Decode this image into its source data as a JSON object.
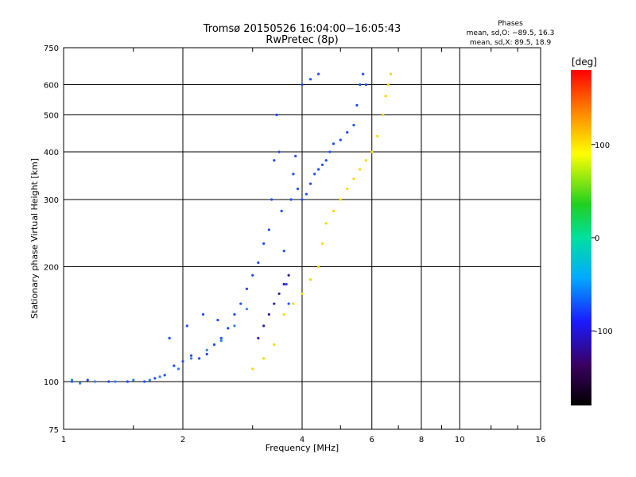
{
  "chart_data": {
    "type": "scatter",
    "title": "Tromsø 20150526 16:04:00−16:05:43",
    "subtitle": "RwPretec (8p)",
    "xlabel": "Frequency [MHz]",
    "ylabel": "Stationary phase Virtual Height [km]",
    "x_scale": "log",
    "y_scale": "log",
    "xlim": [
      1,
      16
    ],
    "ylim": [
      75,
      750
    ],
    "x_ticks": [
      1,
      2,
      4,
      6,
      8,
      10,
      16
    ],
    "y_ticks": [
      75,
      100,
      200,
      300,
      400,
      500,
      600,
      750
    ],
    "grid": true,
    "phase_info": {
      "heading": "Phases",
      "line_o": "mean, sd,O: −89.5, 16.3",
      "line_x": "mean, sd,X:  89.5, 18.9"
    },
    "colorbar": {
      "label": "[deg]",
      "range": [
        -180,
        180
      ],
      "ticks": [
        100,
        0,
        -100
      ],
      "colormap": "rainbow"
    },
    "series": [
      {
        "color": "#1a4bff",
        "value_deg": -90,
        "points": [
          [
            1.05,
            100
          ],
          [
            1.15,
            101
          ],
          [
            1.3,
            100
          ],
          [
            1.45,
            100
          ],
          [
            1.6,
            100
          ],
          [
            1.7,
            102
          ],
          [
            1.8,
            104
          ],
          [
            1.9,
            110
          ],
          [
            2.0,
            113
          ],
          [
            2.1,
            117
          ],
          [
            2.2,
            115
          ],
          [
            2.3,
            118
          ],
          [
            2.4,
            125
          ],
          [
            2.5,
            130
          ],
          [
            2.6,
            138
          ],
          [
            2.7,
            150
          ],
          [
            2.8,
            160
          ],
          [
            2.9,
            175
          ],
          [
            3.0,
            190
          ],
          [
            3.1,
            205
          ],
          [
            3.2,
            230
          ],
          [
            3.3,
            250
          ],
          [
            3.35,
            300
          ],
          [
            3.4,
            380
          ],
          [
            3.45,
            500
          ],
          [
            3.5,
            400
          ],
          [
            3.55,
            280
          ],
          [
            3.6,
            220
          ],
          [
            3.65,
            180
          ],
          [
            3.7,
            160
          ],
          [
            3.75,
            300
          ],
          [
            3.8,
            350
          ],
          [
            3.85,
            390
          ],
          [
            3.9,
            320
          ],
          [
            4.0,
            300
          ],
          [
            4.1,
            310
          ],
          [
            4.2,
            330
          ],
          [
            4.3,
            350
          ],
          [
            4.4,
            360
          ],
          [
            4.5,
            370
          ],
          [
            4.6,
            380
          ],
          [
            4.7,
            400
          ],
          [
            4.8,
            420
          ],
          [
            5.0,
            430
          ],
          [
            5.2,
            450
          ],
          [
            5.4,
            470
          ],
          [
            5.5,
            530
          ],
          [
            5.6,
            600
          ],
          [
            5.7,
            640
          ],
          [
            5.8,
            600
          ],
          [
            4.2,
            620
          ],
          [
            4.4,
            640
          ],
          [
            4.0,
            600
          ],
          [
            1.85,
            130
          ],
          [
            2.05,
            140
          ],
          [
            2.25,
            150
          ],
          [
            2.45,
            145
          ]
        ]
      },
      {
        "color": "#2a80ff",
        "value_deg": -70,
        "points": [
          [
            1.05,
            101
          ],
          [
            1.1,
            99
          ],
          [
            1.2,
            100
          ],
          [
            1.35,
            100
          ],
          [
            1.5,
            101
          ],
          [
            1.65,
            101
          ],
          [
            1.75,
            103
          ],
          [
            1.95,
            108
          ],
          [
            2.1,
            115
          ],
          [
            2.3,
            121
          ],
          [
            2.5,
            128
          ],
          [
            2.7,
            140
          ],
          [
            2.9,
            155
          ]
        ]
      },
      {
        "color": "#3a1aa0",
        "value_deg": -130,
        "points": [
          [
            3.1,
            130
          ],
          [
            3.2,
            140
          ],
          [
            3.3,
            150
          ],
          [
            3.4,
            160
          ],
          [
            3.5,
            170
          ],
          [
            3.6,
            180
          ],
          [
            3.7,
            190
          ]
        ]
      },
      {
        "color": "#ffd800",
        "value_deg": 90,
        "points": [
          [
            3.0,
            108
          ],
          [
            3.2,
            115
          ],
          [
            3.4,
            125
          ],
          [
            3.6,
            150
          ],
          [
            3.8,
            160
          ],
          [
            4.0,
            170
          ],
          [
            4.2,
            185
          ],
          [
            4.4,
            200
          ],
          [
            4.5,
            230
          ],
          [
            4.6,
            260
          ],
          [
            4.8,
            280
          ],
          [
            5.0,
            300
          ],
          [
            5.2,
            320
          ],
          [
            5.4,
            340
          ],
          [
            5.6,
            360
          ],
          [
            5.8,
            380
          ],
          [
            6.0,
            400
          ],
          [
            6.2,
            440
          ],
          [
            6.4,
            500
          ],
          [
            6.5,
            560
          ],
          [
            6.6,
            600
          ],
          [
            6.7,
            640
          ]
        ]
      }
    ]
  }
}
